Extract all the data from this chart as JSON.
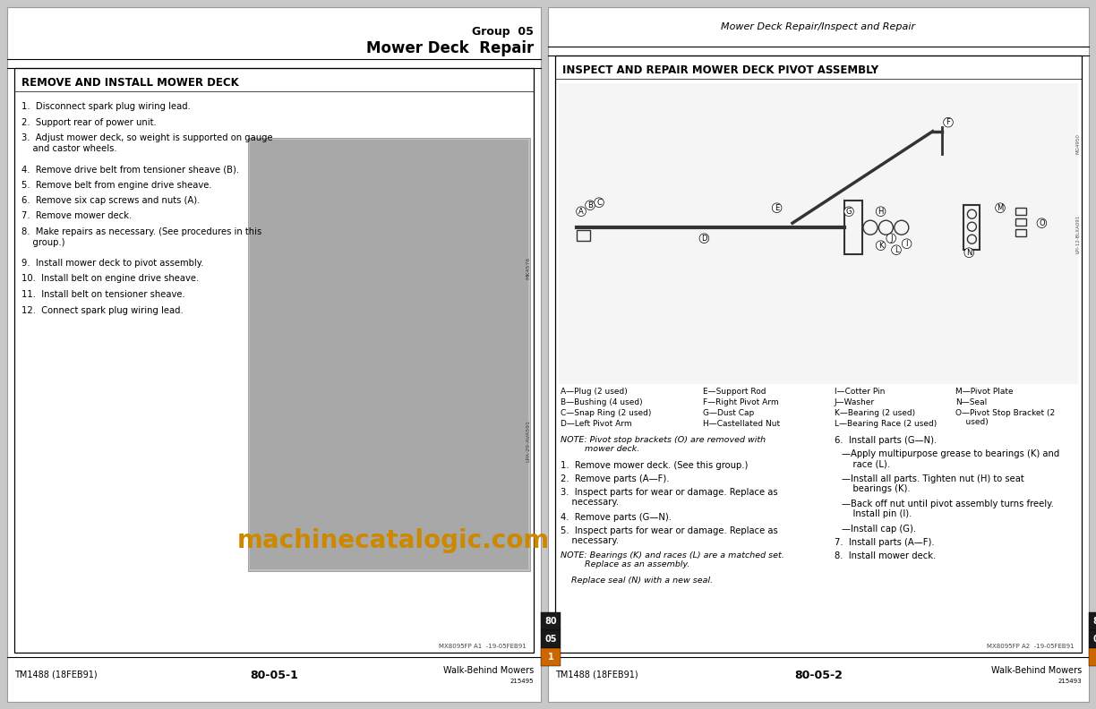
{
  "bg_color": "#c8c8c8",
  "left_section_title": "REMOVE AND INSTALL MOWER DECK",
  "right_section_title": "INSPECT AND REPAIR MOWER DECK PIVOT ASSEMBLY",
  "left_steps": [
    "1.  Disconnect spark plug wiring lead.",
    "2.  Support rear of power unit.",
    "3.  Adjust mower deck, so weight is supported on gauge\n    and castor wheels.",
    "4.  Remove drive belt from tensioner sheave (B).",
    "5.  Remove belt from engine drive sheave.",
    "6.  Remove six cap screws and nuts (A).",
    "7.  Remove mower deck.",
    "8.  Make repairs as necessary. (See procedures in this\n    group.)",
    "9.  Install mower deck to pivot assembly.",
    "10.  Install belt on engine drive sheave.",
    "11.  Install belt on tensioner sheave.",
    "12.  Connect spark plug wiring lead."
  ],
  "watermark_text": "machinecatalogic.com",
  "watermark_color": "#cc8800",
  "parts_legend_col1": [
    "A—Plug (2 used)",
    "B—Bushing (4 used)",
    "C—Snap Ring (2 used)",
    "D—Left Pivot Arm"
  ],
  "parts_legend_col2": [
    "E—Support Rod",
    "F—Right Pivot Arm",
    "G—Dust Cap",
    "H—Castellated Nut"
  ],
  "parts_legend_col3": [
    "I—Cotter Pin",
    "J—Washer",
    "K—Bearing (2 used)",
    "L—Bearing Race (2 used)"
  ],
  "parts_legend_col4": [
    "M—Pivot Plate",
    "N—Seal",
    "O—Pivot Stop Bracket (2\n    used)",
    ""
  ],
  "right_note1_italic": "NOTE: Pivot stop brackets (O) are removed with\n         mower deck.",
  "right_col1_steps": [
    "1.  Remove mower deck. (See this group.)",
    "2.  Remove parts (A—F).",
    "3.  Inspect parts for wear or damage. Replace as\n    necessary.",
    "4.  Remove parts (G—N).",
    "5.  Inspect parts for wear or damage. Replace as\n    necessary.",
    "NOTE_italic:NOTE: Bearings (K) and races (L) are a matched set.\n         Replace as an assembly.",
    "ITALIC:    Replace seal (N) with a new seal."
  ],
  "right_col2_steps": [
    "6.  Install parts (G—N).",
    "INDENT:—Apply multipurpose grease to bearings (K) and\n    race (L).",
    "INDENT:—Install all parts. Tighten nut (H) to seat\n    bearings (K).",
    "INDENT:—Back off nut until pivot assembly turns freely.\n    Install pin (I).",
    "INDENT:—Install cap (G).",
    "7.  Install parts (A—F).",
    "8.  Install mower deck."
  ],
  "header_group": "Group  05",
  "header_title": "Mower Deck  Repair",
  "header_right_italic": "Mower Deck Repair/Inspect and Repair",
  "footer_left1": "TM1488 (18FEB91)",
  "footer_center1": "80-05-1",
  "footer_right1": "Walk-Behind Mowers",
  "footer_sub1": "215495",
  "footer_left2": "TM1488 (18FEB91)",
  "footer_center2": "80-05-2",
  "footer_right2": "Walk-Behind Mowers",
  "footer_sub2": "215493",
  "doc_note_left": "MX8095FP A1  -19-05FEB91",
  "doc_note_right": "MX8095FP A2  -19-05FEB91",
  "tab_dark": "#1a1a1a",
  "tab_orange": "#cc6600"
}
